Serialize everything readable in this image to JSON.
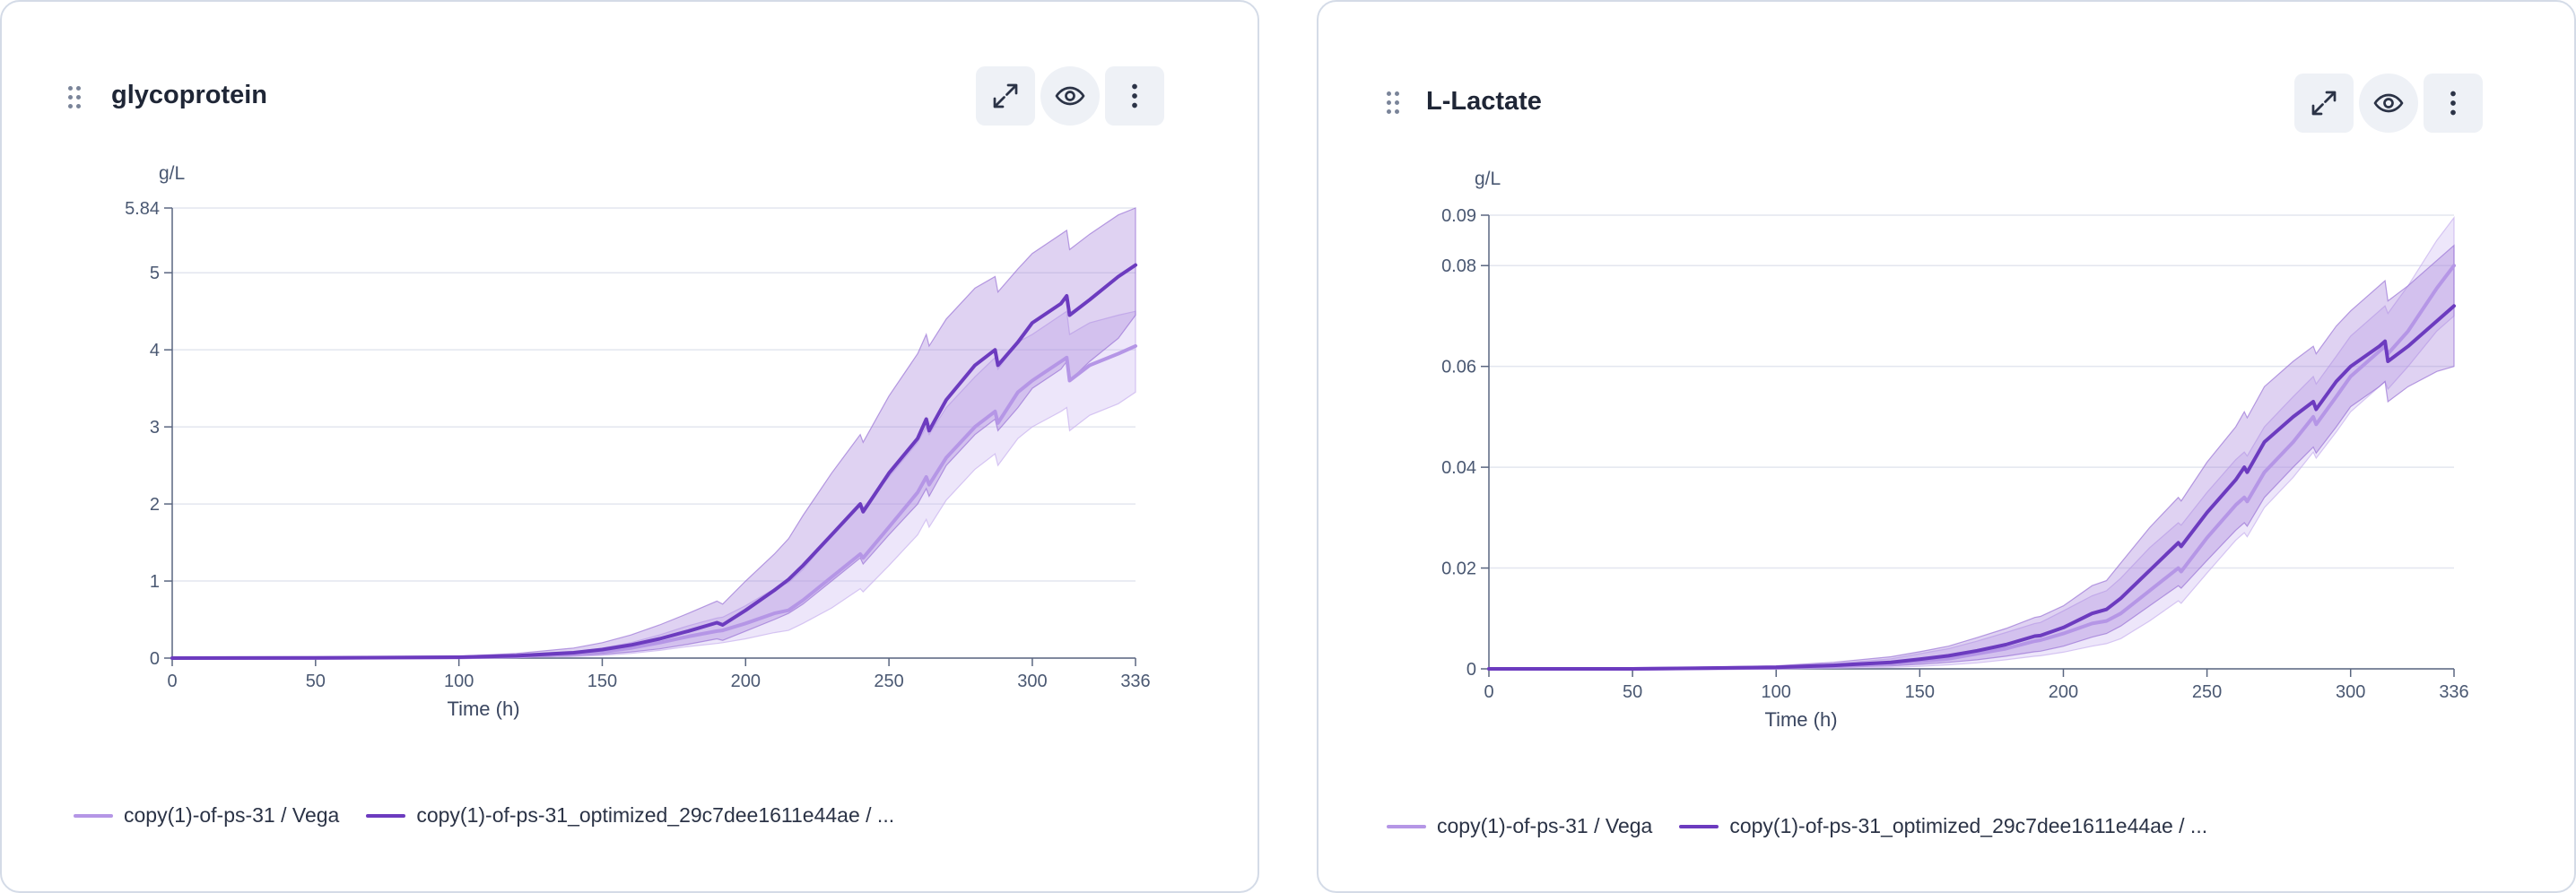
{
  "colors": {
    "series_light": "#b596e6",
    "series_dark": "#6c3bbf",
    "band_light": "#c8b0ee",
    "band_dark": "#9a73d6",
    "grid": "#e3e6ef",
    "axis": "#5a6680"
  },
  "icons": {
    "drag": "drag-handle-icon",
    "expand": "expand-icon",
    "visibility": "eye-icon",
    "menu": "more-vertical-icon"
  },
  "chart_data": [
    {
      "type": "line",
      "title": "glycoprotein",
      "ylabel": "g/L",
      "xlabel": "Time (h)",
      "xlim": [
        0,
        336
      ],
      "ylim": [
        0,
        5.84
      ],
      "x_ticks": [
        "0",
        "50",
        "100",
        "150",
        "200",
        "250",
        "300",
        "336"
      ],
      "y_ticks": [
        "0",
        "1",
        "2",
        "3",
        "4",
        "5",
        "5.84"
      ],
      "grid": true,
      "legend_position": "bottom-left",
      "x": [
        0,
        50,
        100,
        120,
        140,
        150,
        160,
        170,
        180,
        190,
        192,
        200,
        210,
        215,
        220,
        230,
        240,
        241,
        250,
        260,
        263,
        264,
        270,
        280,
        287,
        288,
        295,
        300,
        310,
        312,
        313,
        320,
        330,
        336
      ],
      "series": [
        {
          "name": "copy(1)-of-ps-31 / Vega",
          "values": [
            0,
            0.001,
            0.008,
            0.02,
            0.05,
            0.08,
            0.13,
            0.2,
            0.28,
            0.35,
            0.36,
            0.45,
            0.58,
            0.62,
            0.75,
            1.05,
            1.35,
            1.3,
            1.7,
            2.15,
            2.35,
            2.25,
            2.6,
            3.0,
            3.2,
            3.05,
            3.45,
            3.6,
            3.85,
            3.9,
            3.6,
            3.8,
            3.95,
            4.05
          ],
          "lower": [
            0,
            0,
            0.002,
            0.008,
            0.02,
            0.035,
            0.06,
            0.1,
            0.15,
            0.19,
            0.2,
            0.25,
            0.33,
            0.36,
            0.45,
            0.65,
            0.9,
            0.86,
            1.2,
            1.6,
            1.8,
            1.7,
            2.05,
            2.45,
            2.65,
            2.5,
            2.85,
            3.0,
            3.2,
            3.25,
            2.95,
            3.15,
            3.3,
            3.45
          ],
          "upper": [
            0,
            0.002,
            0.015,
            0.035,
            0.08,
            0.13,
            0.2,
            0.3,
            0.42,
            0.52,
            0.53,
            0.68,
            0.9,
            0.98,
            1.15,
            1.6,
            2.0,
            1.95,
            2.35,
            2.8,
            3.0,
            2.9,
            3.25,
            3.65,
            3.9,
            3.75,
            4.1,
            4.2,
            4.45,
            4.5,
            4.2,
            4.35,
            4.45,
            4.5
          ]
        },
        {
          "name": "copy(1)-of-ps-31_optimized_29c7dee1611e44ae / ...",
          "values": [
            0,
            0.002,
            0.012,
            0.03,
            0.07,
            0.11,
            0.17,
            0.25,
            0.35,
            0.46,
            0.43,
            0.62,
            0.88,
            1.02,
            1.2,
            1.6,
            2.0,
            1.9,
            2.4,
            2.85,
            3.1,
            2.95,
            3.35,
            3.8,
            4.0,
            3.8,
            4.1,
            4.35,
            4.6,
            4.7,
            4.45,
            4.65,
            4.95,
            5.1
          ],
          "lower": [
            0,
            0.001,
            0.005,
            0.012,
            0.03,
            0.05,
            0.08,
            0.12,
            0.18,
            0.25,
            0.23,
            0.35,
            0.5,
            0.58,
            0.7,
            1.0,
            1.3,
            1.22,
            1.6,
            2.0,
            2.2,
            2.1,
            2.5,
            2.9,
            3.1,
            2.95,
            3.25,
            3.5,
            3.75,
            3.85,
            3.6,
            3.85,
            4.15,
            4.45
          ],
          "upper": [
            0,
            0.004,
            0.025,
            0.06,
            0.13,
            0.2,
            0.3,
            0.43,
            0.58,
            0.74,
            0.7,
            1.0,
            1.35,
            1.55,
            1.85,
            2.4,
            2.9,
            2.8,
            3.4,
            3.95,
            4.2,
            4.05,
            4.4,
            4.8,
            4.95,
            4.75,
            5.05,
            5.25,
            5.5,
            5.55,
            5.3,
            5.5,
            5.75,
            5.84
          ]
        }
      ]
    },
    {
      "type": "line",
      "title": "L-Lactate",
      "ylabel": "g/L",
      "xlabel": "Time (h)",
      "xlim": [
        0,
        336
      ],
      "ylim": [
        0,
        0.09
      ],
      "x_ticks": [
        "0",
        "50",
        "100",
        "150",
        "200",
        "250",
        "300",
        "336"
      ],
      "y_ticks": [
        "0",
        "0.02",
        "0.04",
        "0.06",
        "0.08",
        "0.09"
      ],
      "grid": true,
      "legend_position": "bottom-left",
      "x": [
        0,
        50,
        100,
        120,
        140,
        150,
        160,
        170,
        180,
        190,
        192,
        200,
        210,
        215,
        220,
        230,
        240,
        241,
        250,
        260,
        263,
        264,
        270,
        280,
        287,
        288,
        295,
        300,
        310,
        312,
        313,
        320,
        330,
        336
      ],
      "series": [
        {
          "name": "copy(1)-of-ps-31 / Vega",
          "values": [
            0,
            0,
            0.0002,
            0.0005,
            0.001,
            0.0015,
            0.002,
            0.003,
            0.004,
            0.0055,
            0.0057,
            0.007,
            0.009,
            0.0095,
            0.011,
            0.0155,
            0.02,
            0.0193,
            0.026,
            0.0325,
            0.034,
            0.0332,
            0.039,
            0.045,
            0.05,
            0.0485,
            0.054,
            0.058,
            0.063,
            0.064,
            0.0625,
            0.067,
            0.0755,
            0.08
          ],
          "lower": [
            0,
            0,
            0,
            0.0001,
            0.0003,
            0.0005,
            0.0008,
            0.0012,
            0.0018,
            0.0025,
            0.0026,
            0.0033,
            0.0045,
            0.005,
            0.006,
            0.0095,
            0.0135,
            0.013,
            0.019,
            0.0255,
            0.027,
            0.0262,
            0.032,
            0.038,
            0.043,
            0.0418,
            0.047,
            0.051,
            0.056,
            0.057,
            0.0555,
            0.06,
            0.067,
            0.07
          ],
          "upper": [
            0,
            0.0001,
            0.0005,
            0.001,
            0.002,
            0.003,
            0.004,
            0.0055,
            0.0072,
            0.009,
            0.0092,
            0.0115,
            0.0145,
            0.0155,
            0.018,
            0.024,
            0.029,
            0.0285,
            0.035,
            0.0415,
            0.043,
            0.0422,
            0.048,
            0.054,
            0.058,
            0.0565,
            0.062,
            0.066,
            0.071,
            0.072,
            0.0705,
            0.076,
            0.085,
            0.0895
          ]
        },
        {
          "name": "copy(1)-of-ps-31_optimized_29c7dee1611e44ae / ...",
          "values": [
            0,
            0,
            0.0003,
            0.0007,
            0.0013,
            0.0019,
            0.0026,
            0.0036,
            0.0048,
            0.0065,
            0.0066,
            0.0082,
            0.011,
            0.0118,
            0.014,
            0.0195,
            0.025,
            0.0243,
            0.031,
            0.0375,
            0.04,
            0.039,
            0.045,
            0.05,
            0.053,
            0.0515,
            0.057,
            0.06,
            0.064,
            0.065,
            0.061,
            0.064,
            0.069,
            0.072
          ],
          "lower": [
            0,
            0,
            0.0001,
            0.0003,
            0.0006,
            0.0009,
            0.0013,
            0.0018,
            0.0025,
            0.0034,
            0.0035,
            0.0045,
            0.0063,
            0.007,
            0.0085,
            0.0125,
            0.0165,
            0.016,
            0.0215,
            0.0275,
            0.029,
            0.0283,
            0.034,
            0.04,
            0.044,
            0.0428,
            0.048,
            0.052,
            0.056,
            0.057,
            0.053,
            0.056,
            0.059,
            0.06
          ],
          "upper": [
            0,
            0.0001,
            0.0006,
            0.0013,
            0.0024,
            0.0034,
            0.0045,
            0.0062,
            0.008,
            0.0102,
            0.0104,
            0.0125,
            0.0165,
            0.0175,
            0.021,
            0.028,
            0.034,
            0.0333,
            0.041,
            0.048,
            0.051,
            0.0498,
            0.056,
            0.061,
            0.064,
            0.0625,
            0.068,
            0.071,
            0.076,
            0.077,
            0.073,
            0.076,
            0.081,
            0.084
          ]
        }
      ]
    }
  ]
}
